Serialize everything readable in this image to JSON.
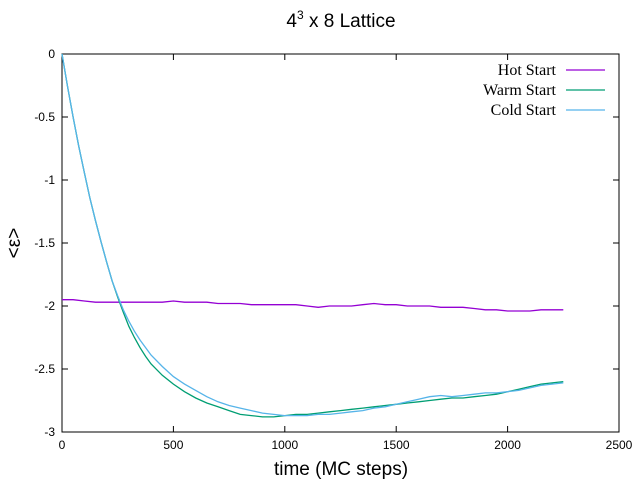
{
  "chart_data": {
    "type": "line",
    "title": {
      "base": "4",
      "sup": "3",
      "rest": " x 8 Lattice"
    },
    "xlabel": "time (MC steps)",
    "ylabel": "<ε>",
    "xlim": [
      0,
      2500
    ],
    "ylim": [
      -3,
      0
    ],
    "xticks": [
      0,
      500,
      1000,
      1500,
      2000,
      2500
    ],
    "yticks": [
      0,
      -0.5,
      -1,
      -1.5,
      -2,
      -2.5,
      -3
    ],
    "xtick_labels": [
      "0",
      "500",
      "1000",
      "1500",
      "2000",
      "2500"
    ],
    "ytick_labels": [
      "0",
      "-0.5",
      "-1",
      "-1.5",
      "-2",
      "-2.5",
      "-3"
    ],
    "grid": false,
    "legend_position": "top-right",
    "series": [
      {
        "name": "Hot Start",
        "color": "#9400d3",
        "x": [
          0,
          50,
          100,
          150,
          200,
          250,
          300,
          350,
          400,
          450,
          500,
          550,
          600,
          650,
          700,
          750,
          800,
          850,
          900,
          950,
          1000,
          1050,
          1100,
          1150,
          1200,
          1250,
          1300,
          1350,
          1400,
          1450,
          1500,
          1550,
          1600,
          1650,
          1700,
          1750,
          1800,
          1850,
          1900,
          1950,
          2000,
          2050,
          2100,
          2150,
          2200,
          2250
        ],
        "y": [
          -1.95,
          -1.95,
          -1.96,
          -1.97,
          -1.97,
          -1.97,
          -1.97,
          -1.97,
          -1.97,
          -1.97,
          -1.96,
          -1.97,
          -1.97,
          -1.97,
          -1.98,
          -1.98,
          -1.98,
          -1.99,
          -1.99,
          -1.99,
          -1.99,
          -1.99,
          -2.0,
          -2.01,
          -2.0,
          -2.0,
          -2.0,
          -1.99,
          -1.98,
          -1.99,
          -1.99,
          -2.0,
          -2.0,
          -2.0,
          -2.01,
          -2.01,
          -2.01,
          -2.02,
          -2.03,
          -2.03,
          -2.04,
          -2.04,
          -2.04,
          -2.03,
          -2.03,
          -2.03
        ]
      },
      {
        "name": "Warm Start",
        "color": "#009e73",
        "x": [
          0,
          25,
          50,
          75,
          100,
          125,
          150,
          175,
          200,
          225,
          250,
          275,
          300,
          325,
          350,
          375,
          400,
          450,
          500,
          550,
          600,
          650,
          700,
          750,
          800,
          850,
          900,
          950,
          1000,
          1050,
          1100,
          1150,
          1200,
          1250,
          1300,
          1350,
          1400,
          1450,
          1500,
          1550,
          1600,
          1650,
          1700,
          1750,
          1800,
          1850,
          1900,
          1950,
          2000,
          2050,
          2100,
          2150,
          2200,
          2250
        ],
        "y": [
          0.0,
          -0.26,
          -0.5,
          -0.73,
          -0.94,
          -1.14,
          -1.32,
          -1.49,
          -1.65,
          -1.8,
          -1.93,
          -2.05,
          -2.16,
          -2.25,
          -2.33,
          -2.4,
          -2.46,
          -2.55,
          -2.62,
          -2.68,
          -2.73,
          -2.77,
          -2.8,
          -2.83,
          -2.86,
          -2.87,
          -2.88,
          -2.88,
          -2.87,
          -2.86,
          -2.86,
          -2.85,
          -2.84,
          -2.83,
          -2.82,
          -2.81,
          -2.8,
          -2.79,
          -2.78,
          -2.77,
          -2.76,
          -2.75,
          -2.74,
          -2.73,
          -2.73,
          -2.72,
          -2.71,
          -2.7,
          -2.68,
          -2.66,
          -2.64,
          -2.62,
          -2.61,
          -2.6
        ]
      },
      {
        "name": "Cold Start",
        "color": "#56b4e9",
        "x": [
          0,
          25,
          50,
          75,
          100,
          125,
          150,
          175,
          200,
          225,
          250,
          275,
          300,
          325,
          350,
          375,
          400,
          450,
          500,
          550,
          600,
          650,
          700,
          750,
          800,
          850,
          900,
          950,
          1000,
          1050,
          1100,
          1150,
          1200,
          1250,
          1300,
          1350,
          1400,
          1450,
          1500,
          1550,
          1600,
          1650,
          1700,
          1750,
          1800,
          1850,
          1900,
          1950,
          2000,
          2050,
          2100,
          2150,
          2200,
          2250
        ],
        "y": [
          0.0,
          -0.26,
          -0.5,
          -0.73,
          -0.94,
          -1.14,
          -1.32,
          -1.49,
          -1.65,
          -1.8,
          -1.92,
          -2.03,
          -2.12,
          -2.2,
          -2.27,
          -2.33,
          -2.39,
          -2.48,
          -2.56,
          -2.62,
          -2.67,
          -2.72,
          -2.76,
          -2.79,
          -2.81,
          -2.83,
          -2.85,
          -2.86,
          -2.87,
          -2.87,
          -2.87,
          -2.86,
          -2.86,
          -2.85,
          -2.84,
          -2.83,
          -2.81,
          -2.8,
          -2.78,
          -2.76,
          -2.74,
          -2.72,
          -2.71,
          -2.72,
          -2.71,
          -2.7,
          -2.69,
          -2.69,
          -2.68,
          -2.67,
          -2.65,
          -2.63,
          -2.62,
          -2.61
        ]
      }
    ]
  }
}
